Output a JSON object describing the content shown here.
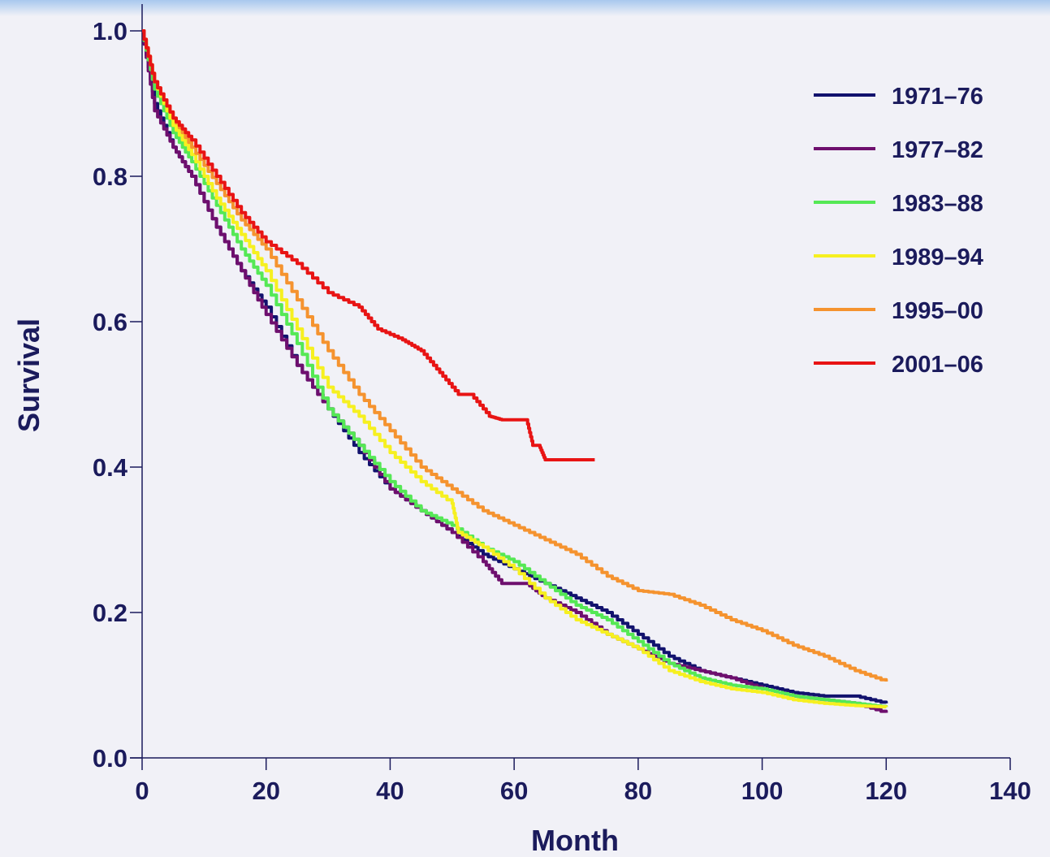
{
  "chart_data": {
    "type": "line",
    "title": "",
    "xlabel": "Month",
    "ylabel": "Survival",
    "xlim": [
      0,
      140
    ],
    "ylim": [
      0,
      1.0
    ],
    "xticks": [
      0,
      20,
      40,
      60,
      80,
      100,
      120,
      140
    ],
    "xtick_labels": [
      "0",
      "20",
      "40",
      "60",
      "80",
      "100",
      "120",
      "140"
    ],
    "yticks": [
      0,
      0.2,
      0.4,
      0.6,
      0.8,
      1.0
    ],
    "ytick_labels": [
      "0.0",
      "0.2",
      "0.4",
      "0.6",
      "0.8",
      "1.0"
    ],
    "grid": false,
    "legend_position": "top-right",
    "series": [
      {
        "name": "1971–76",
        "color": "#12126e",
        "x": [
          0,
          2,
          5,
          8,
          12,
          16,
          20,
          25,
          30,
          35,
          40,
          45,
          50,
          55,
          60,
          65,
          70,
          75,
          80,
          85,
          90,
          95,
          100,
          105,
          110,
          115,
          120
        ],
        "y": [
          1.0,
          0.9,
          0.84,
          0.8,
          0.73,
          0.67,
          0.62,
          0.54,
          0.48,
          0.42,
          0.37,
          0.34,
          0.31,
          0.28,
          0.26,
          0.24,
          0.22,
          0.2,
          0.17,
          0.14,
          0.12,
          0.11,
          0.1,
          0.09,
          0.085,
          0.085,
          0.075
        ]
      },
      {
        "name": "1977–82",
        "color": "#6e0f6e",
        "x": [
          0,
          2,
          5,
          8,
          12,
          16,
          20,
          25,
          30,
          35,
          40,
          45,
          50,
          55,
          58,
          62,
          65,
          70,
          75,
          80,
          85,
          90,
          95,
          100,
          105,
          110,
          115,
          120
        ],
        "y": [
          1.0,
          0.89,
          0.84,
          0.8,
          0.73,
          0.67,
          0.61,
          0.54,
          0.48,
          0.43,
          0.37,
          0.34,
          0.31,
          0.27,
          0.24,
          0.24,
          0.22,
          0.2,
          0.17,
          0.15,
          0.13,
          0.12,
          0.11,
          0.095,
          0.085,
          0.08,
          0.075,
          0.062
        ]
      },
      {
        "name": "1983–88",
        "color": "#55e855",
        "x": [
          0,
          2,
          5,
          8,
          12,
          16,
          20,
          25,
          30,
          35,
          40,
          45,
          50,
          55,
          60,
          65,
          70,
          75,
          80,
          85,
          90,
          95,
          100,
          105,
          110,
          115,
          120
        ],
        "y": [
          1.0,
          0.92,
          0.86,
          0.82,
          0.76,
          0.7,
          0.65,
          0.57,
          0.48,
          0.43,
          0.38,
          0.34,
          0.32,
          0.29,
          0.27,
          0.24,
          0.21,
          0.19,
          0.16,
          0.13,
          0.11,
          0.1,
          0.095,
          0.085,
          0.08,
          0.075,
          0.07
        ]
      },
      {
        "name": "1989–94",
        "color": "#f6f020",
        "x": [
          0,
          2,
          5,
          8,
          12,
          16,
          20,
          25,
          30,
          35,
          40,
          45,
          50,
          51,
          55,
          60,
          65,
          70,
          75,
          80,
          85,
          90,
          95,
          100,
          105,
          110,
          115,
          120
        ],
        "y": [
          1.0,
          0.93,
          0.87,
          0.83,
          0.77,
          0.72,
          0.67,
          0.59,
          0.51,
          0.47,
          0.42,
          0.38,
          0.35,
          0.31,
          0.29,
          0.26,
          0.22,
          0.19,
          0.17,
          0.15,
          0.12,
          0.105,
          0.095,
          0.09,
          0.08,
          0.075,
          0.072,
          0.07
        ]
      },
      {
        "name": "1995–00",
        "color": "#f5932f",
        "x": [
          0,
          2,
          5,
          8,
          12,
          16,
          20,
          25,
          30,
          35,
          40,
          45,
          50,
          55,
          60,
          65,
          70,
          75,
          80,
          85,
          90,
          95,
          100,
          105,
          110,
          115,
          120
        ],
        "y": [
          1.0,
          0.93,
          0.88,
          0.84,
          0.79,
          0.74,
          0.7,
          0.63,
          0.56,
          0.5,
          0.45,
          0.4,
          0.37,
          0.34,
          0.32,
          0.3,
          0.28,
          0.25,
          0.23,
          0.225,
          0.21,
          0.19,
          0.175,
          0.155,
          0.14,
          0.12,
          0.105
        ]
      },
      {
        "name": "2001–06",
        "color": "#e81414",
        "x": [
          0,
          2,
          5,
          8,
          12,
          16,
          20,
          25,
          30,
          35,
          38,
          42,
          45,
          48,
          51,
          53,
          56,
          58,
          60,
          62,
          63,
          64,
          65,
          68,
          73
        ],
        "y": [
          1.0,
          0.93,
          0.88,
          0.85,
          0.8,
          0.75,
          0.71,
          0.68,
          0.64,
          0.62,
          0.59,
          0.575,
          0.56,
          0.53,
          0.5,
          0.5,
          0.47,
          0.465,
          0.465,
          0.465,
          0.43,
          0.43,
          0.41,
          0.41,
          0.41
        ]
      }
    ]
  }
}
